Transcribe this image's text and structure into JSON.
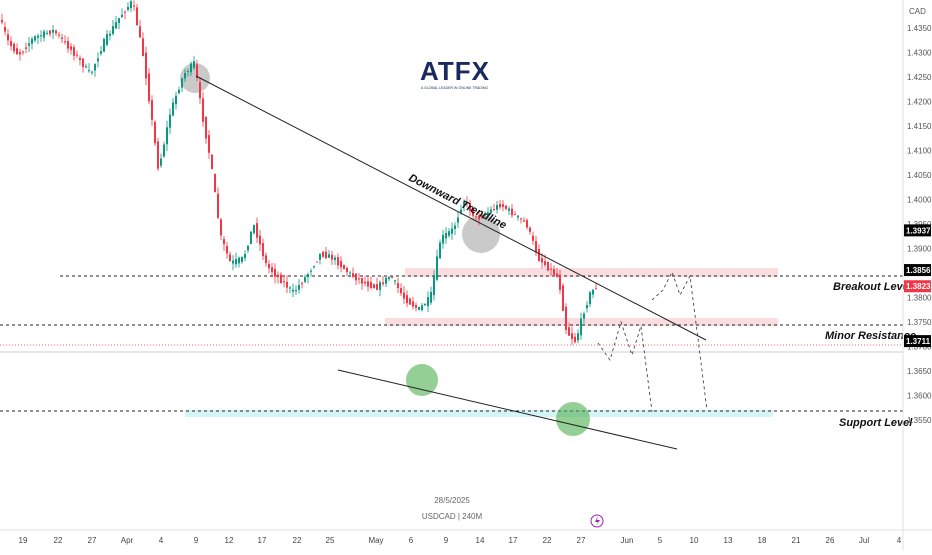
{
  "chart_data": {
    "type": "candlestick",
    "symbol": "USDCAD",
    "interval": "240M",
    "date": "28/5/2025",
    "currency": "CAD",
    "logo": {
      "text": "ATFX",
      "tagline": "A GLOBAL LEADER IN ONLINE TRADING"
    },
    "ylim": [
      1.3525,
      1.4395
    ],
    "y_ticks": [
      1.435,
      1.43,
      1.425,
      1.42,
      1.415,
      1.41,
      1.405,
      1.4,
      1.395,
      1.39,
      1.385,
      1.38,
      1.375,
      1.37,
      1.365,
      1.36,
      1.355
    ],
    "x_ticks": [
      "19",
      "22",
      "27",
      "Apr",
      "4",
      "9",
      "12",
      "17",
      "22",
      "25",
      "May",
      "6",
      "9",
      "14",
      "17",
      "22",
      "27",
      "Jun",
      "5",
      "10",
      "13",
      "18",
      "21",
      "26",
      "Jul",
      "4"
    ],
    "levels": [
      {
        "name": "Breakout Level",
        "value": 1.3937,
        "label": "1.3937",
        "tag_color": "#000000"
      },
      {
        "name": "Minor Resistance",
        "value": 1.3856,
        "label": "1.3856",
        "tag_color": "#000000"
      },
      {
        "name": "current",
        "value": 1.3823,
        "label": "1.3823",
        "tag_color": "#f23645"
      },
      {
        "name": "Support Level",
        "value": 1.3711,
        "label": "1.3711",
        "tag_color": "#000000"
      }
    ],
    "annotations": {
      "downward_trendline": "Downward Trendline",
      "breakout": "Breakout Level",
      "minor_resistance": "Minor Resistance",
      "support": "Support Level"
    },
    "colors": {
      "up": "#089981",
      "down": "#f23645",
      "zone": "#f7c6cc",
      "support_zone": "#b9ecf0",
      "green_circle": "#4caf50",
      "grey_circle": "#9e9e9e"
    }
  }
}
